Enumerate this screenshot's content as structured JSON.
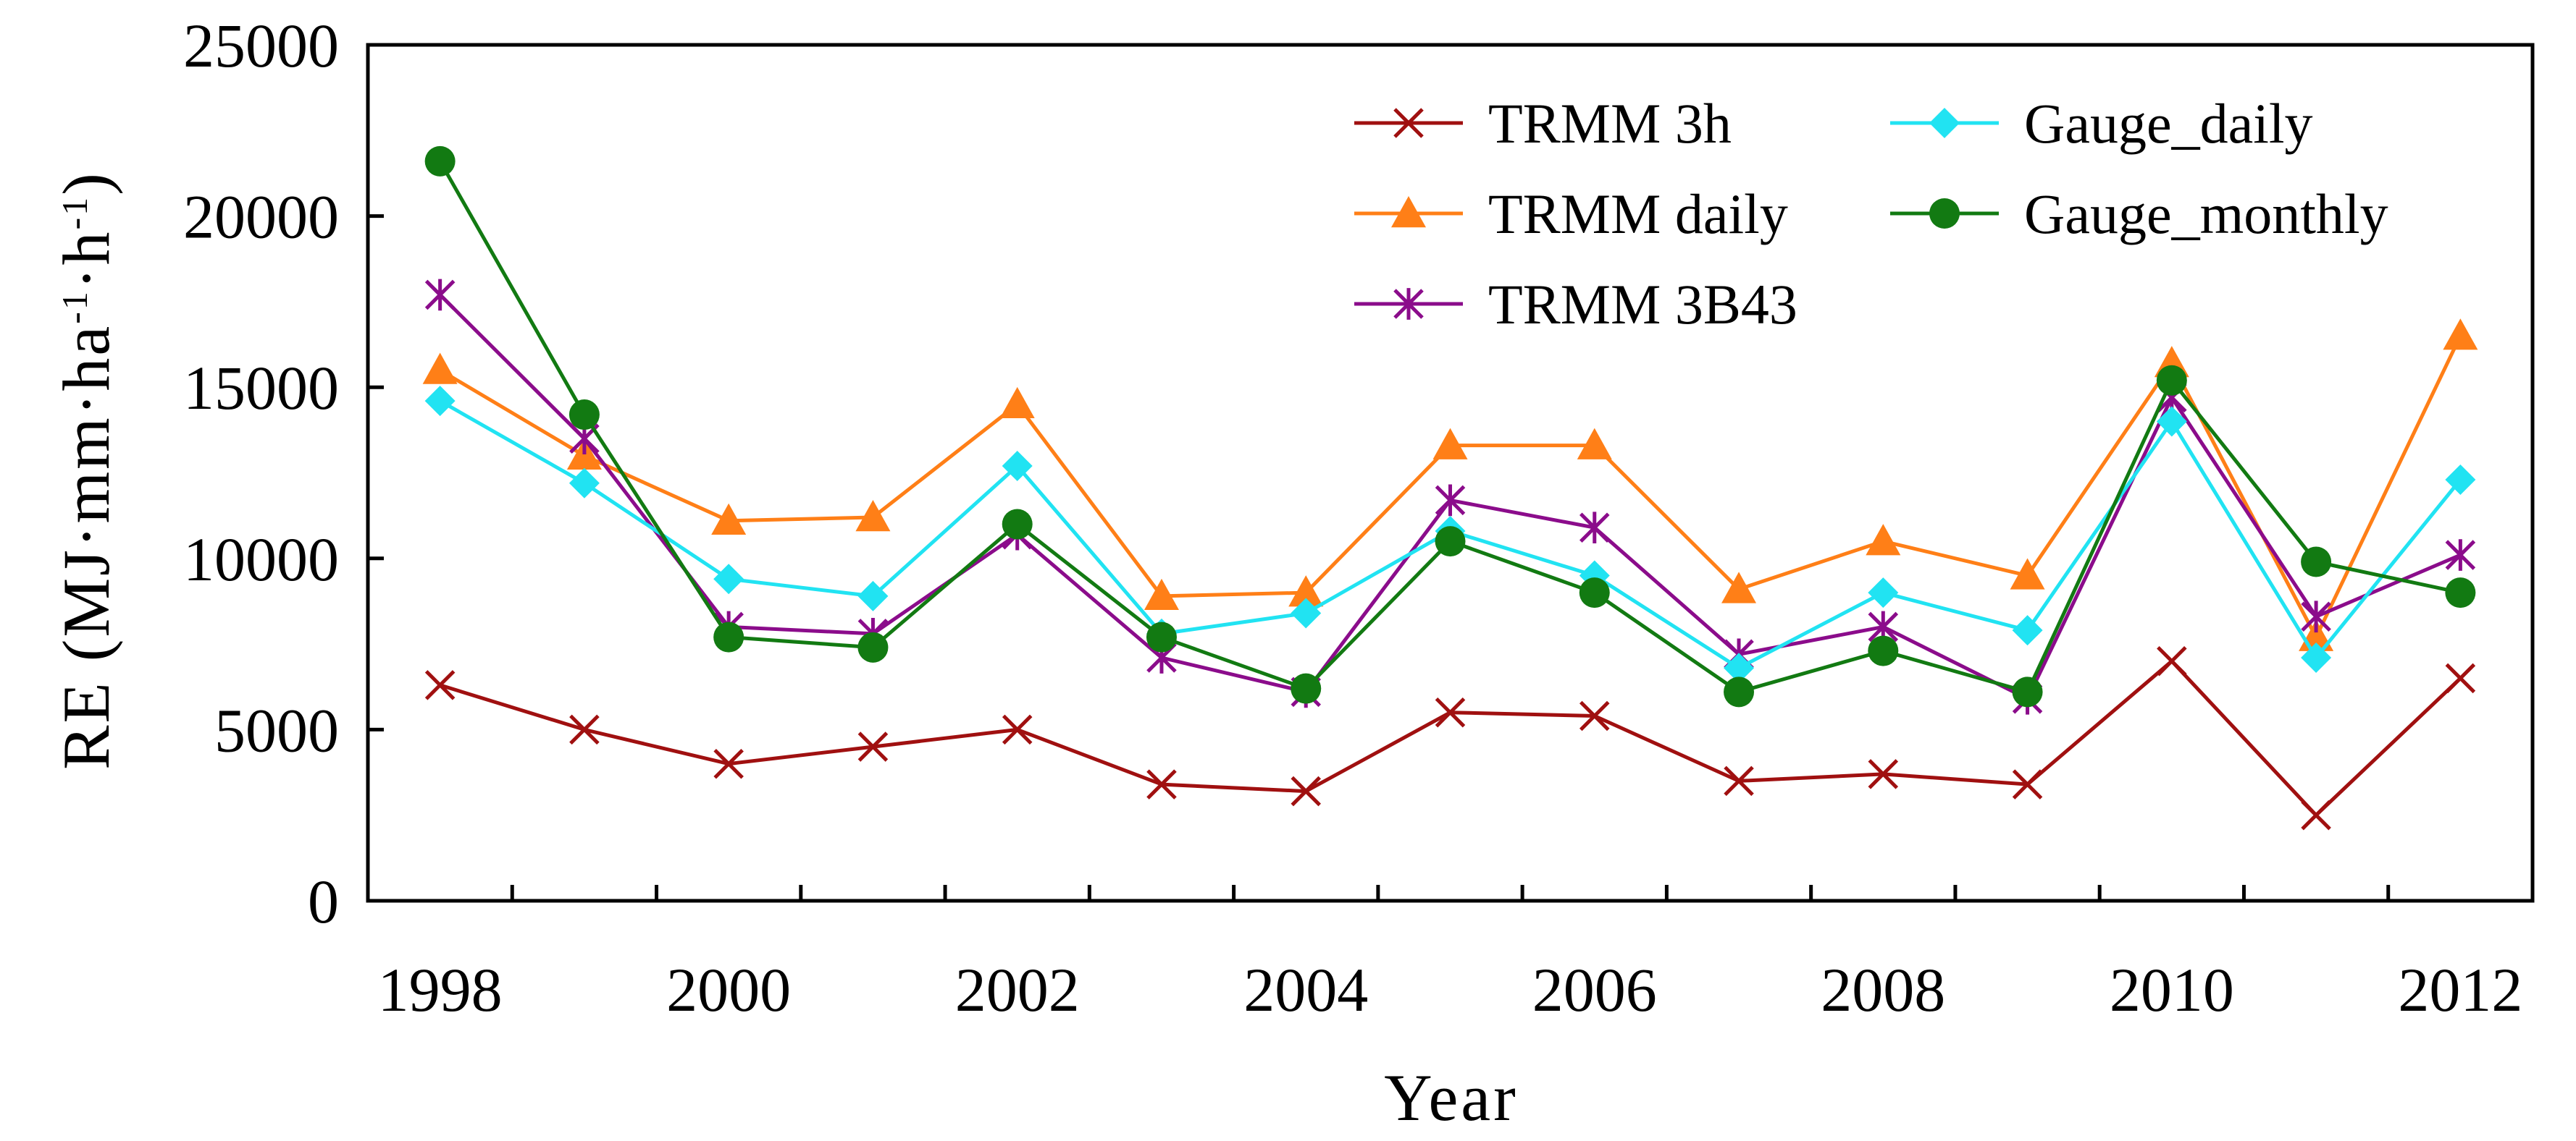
{
  "chart_data": {
    "type": "line",
    "title": "",
    "xlabel": "Year",
    "ylabel": "RE (MJ·mm·ha-1·h-1)",
    "ylabel_parts": {
      "main": "RE (MJ·mm·ha",
      "exp1": "-1",
      "mid": "·h",
      "exp2": "-1",
      "close": ")"
    },
    "x": [
      1998,
      1999,
      2000,
      2001,
      2002,
      2003,
      2004,
      2005,
      2006,
      2007,
      2008,
      2009,
      2010,
      2011,
      2012
    ],
    "x_tick_labels": [
      "1998",
      "2000",
      "2002",
      "2004",
      "2006",
      "2008",
      "2010",
      "2012"
    ],
    "y_tick_labels": [
      "0",
      "5000",
      "10000",
      "15000",
      "20000",
      "25000"
    ],
    "ylim": [
      0,
      25000
    ],
    "yticks": [
      0,
      5000,
      10000,
      15000,
      20000,
      25000
    ],
    "grid": false,
    "legend_position": "top-right",
    "series": [
      {
        "name": "TRMM 3h",
        "color": "#a01010",
        "marker": "x",
        "values": [
          6300,
          5000,
          4000,
          4500,
          5000,
          3400,
          3200,
          5500,
          5400,
          3500,
          3700,
          3400,
          7000,
          2500,
          6500
        ]
      },
      {
        "name": "TRMM daily",
        "color": "#ff7f17",
        "marker": "triangle",
        "values": [
          15500,
          13000,
          11100,
          11200,
          14500,
          8900,
          9000,
          13300,
          13300,
          9100,
          10500,
          9500,
          15700,
          7700,
          16500
        ]
      },
      {
        "name": "TRMM 3B43",
        "color": "#8b0c8b",
        "marker": "asterisk",
        "values": [
          17700,
          13500,
          8000,
          7800,
          10700,
          7100,
          6100,
          11700,
          10900,
          7200,
          8000,
          5900,
          14700,
          8300,
          10100
        ]
      },
      {
        "name": "Gauge_daily",
        "color": "#21e3f2",
        "marker": "diamond",
        "values": [
          14600,
          12200,
          9400,
          8900,
          12700,
          7800,
          8400,
          10800,
          9500,
          6800,
          9000,
          7900,
          14000,
          7100,
          12300
        ]
      },
      {
        "name": "Gauge_monthly",
        "color": "#127a12",
        "marker": "circle",
        "values": [
          21600,
          14200,
          7700,
          7400,
          11000,
          7700,
          6200,
          10500,
          9000,
          6100,
          7300,
          6100,
          15200,
          9900,
          9000
        ]
      }
    ]
  }
}
